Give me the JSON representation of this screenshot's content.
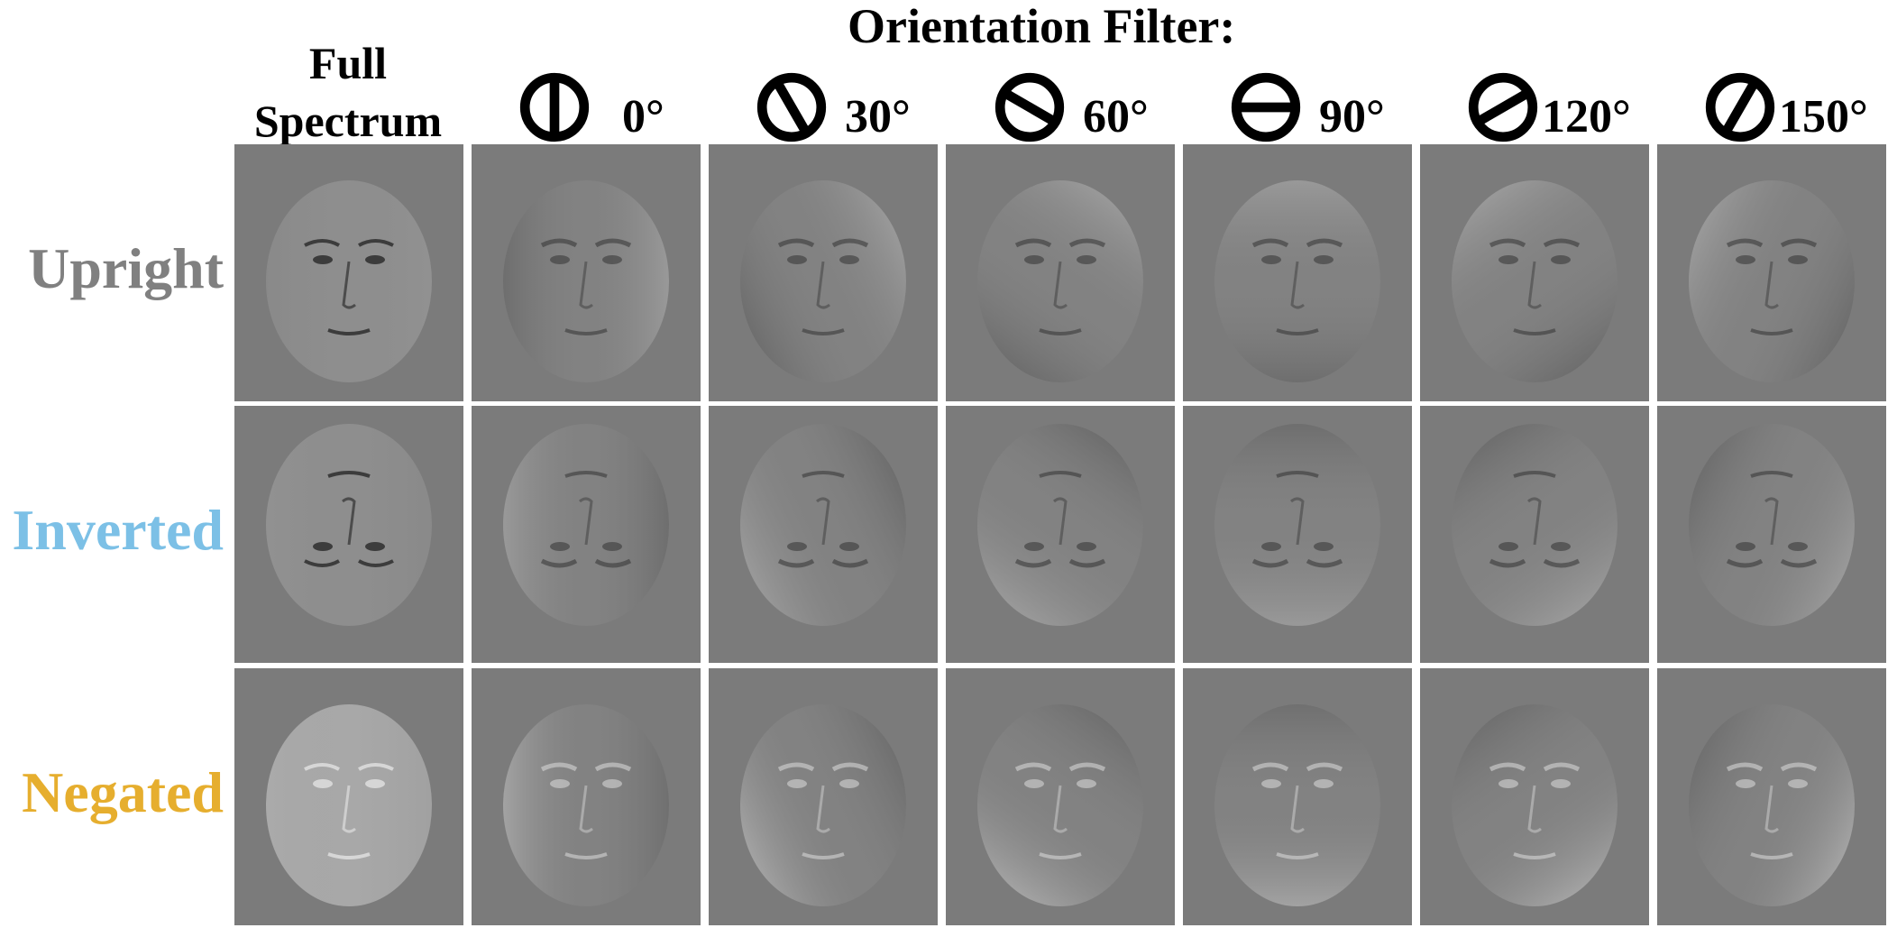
{
  "title": "Orientation Filter:",
  "full_header": [
    "Full",
    "Spectrum"
  ],
  "filters": [
    {
      "label": "0°",
      "angle": 0
    },
    {
      "label": "30°",
      "angle": 30
    },
    {
      "label": "60°",
      "angle": 60
    },
    {
      "label": "90°",
      "angle": 90
    },
    {
      "label": "120°",
      "angle": 120
    },
    {
      "label": "150°",
      "angle": 150
    }
  ],
  "rows": [
    {
      "label": "Upright",
      "color": "#808080",
      "inverted": false,
      "negated": false
    },
    {
      "label": "Inverted",
      "color": "#7cc0e6",
      "inverted": true,
      "negated": false
    },
    {
      "label": "Negated",
      "color": "#e6ae2e",
      "inverted": false,
      "negated": true
    }
  ]
}
